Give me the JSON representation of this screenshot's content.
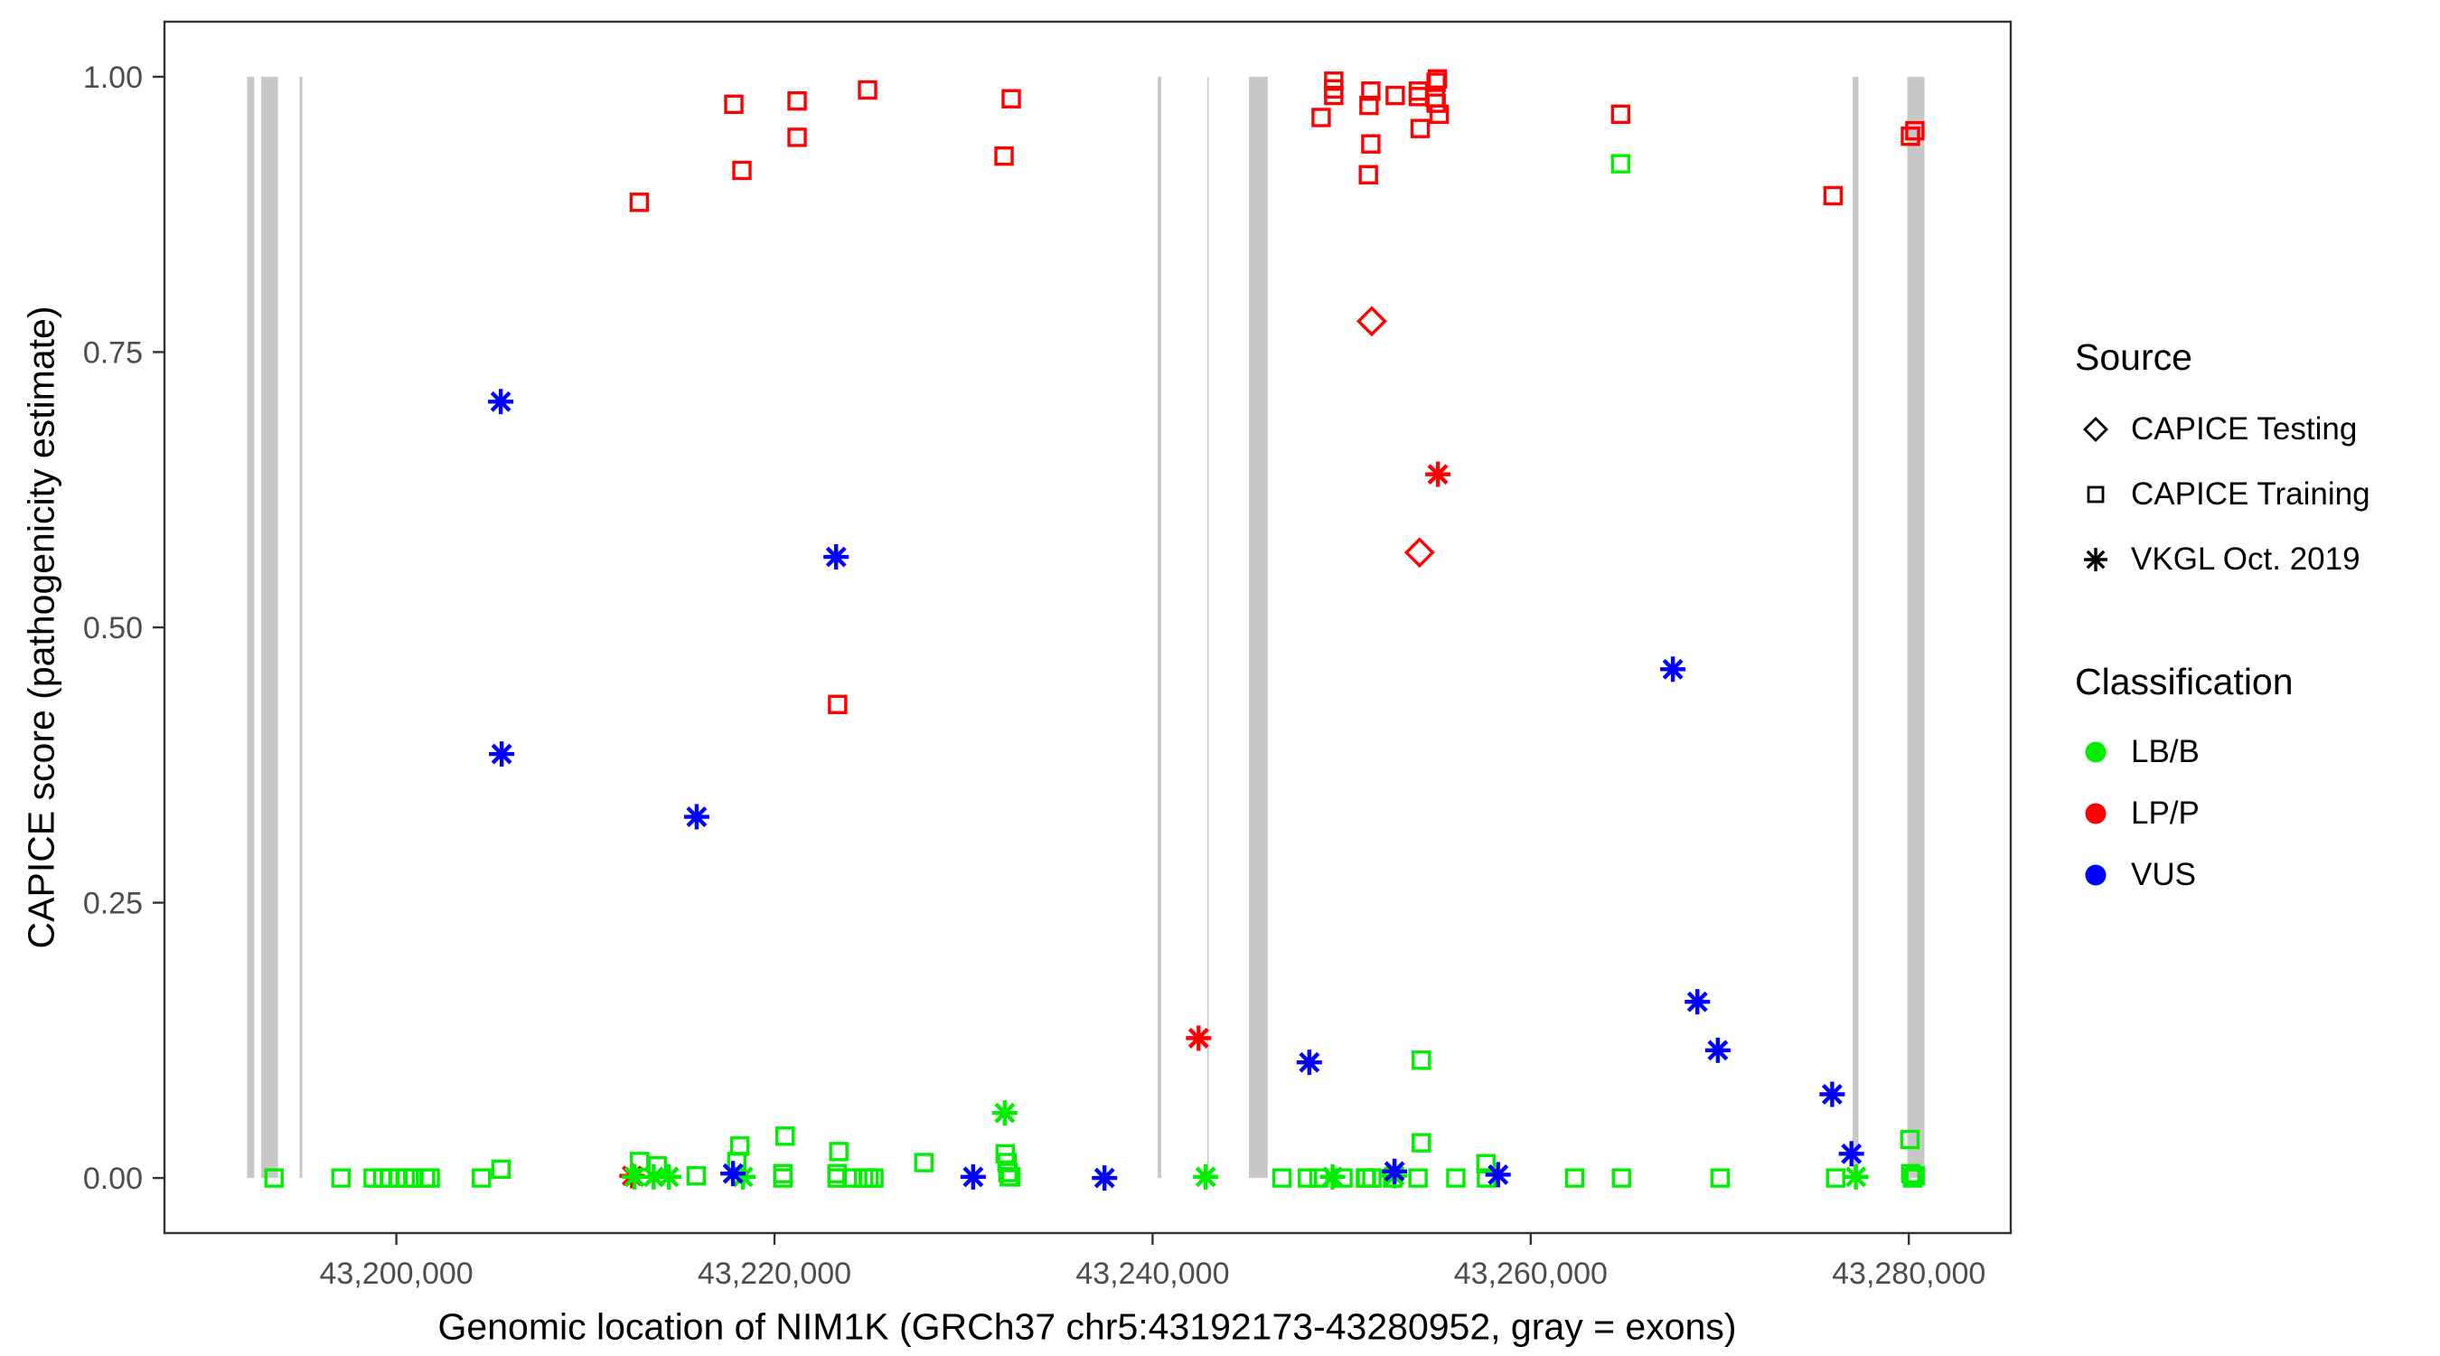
{
  "chart_data": {
    "type": "scatter",
    "title": "",
    "xlabel": "Genomic location of NIM1K (GRCh37 chr5:43192173-43280952, gray = exons)",
    "ylabel": "CAPICE score (pathogenicity estimate)",
    "xlim": [
      43187734,
      43285391
    ],
    "ylim": [
      -0.05,
      1.05
    ],
    "grid": false,
    "x_ticks": [
      {
        "value": 43200000,
        "label": "43,200,000"
      },
      {
        "value": 43220000,
        "label": "43,220,000"
      },
      {
        "value": 43240000,
        "label": "43,240,000"
      },
      {
        "value": 43260000,
        "label": "43,260,000"
      },
      {
        "value": 43280000,
        "label": "43,280,000"
      }
    ],
    "y_ticks": [
      {
        "value": 0.0,
        "label": "0.00"
      },
      {
        "value": 0.25,
        "label": "0.25"
      },
      {
        "value": 0.5,
        "label": "0.50"
      },
      {
        "value": 0.75,
        "label": "0.75"
      },
      {
        "value": 1.0,
        "label": "1.00"
      }
    ],
    "exon_color": "#C8C8C8",
    "exons": [
      [
        43192100,
        43192480
      ],
      [
        43192850,
        43193740
      ],
      [
        43194880,
        43195030
      ],
      [
        43240270,
        43240460
      ],
      [
        43242890,
        43242960
      ],
      [
        43245090,
        43246090
      ],
      [
        43277030,
        43277340
      ],
      [
        43279920,
        43280830
      ]
    ],
    "shape_by_source": {
      "CAPICE Testing": "diamond",
      "CAPICE Training": "square",
      "VKGL Oct. 2019": "asterisk"
    },
    "color_by_classification": {
      "LB/B": "#00EE00",
      "LP/P": "#FF0000",
      "VUS": "#0000FF"
    },
    "points": [
      {
        "x": 43212850,
        "y": 0.886,
        "shape": "square",
        "class": "LP/P"
      },
      {
        "x": 43217850,
        "y": 0.975,
        "shape": "square",
        "class": "LP/P"
      },
      {
        "x": 43218280,
        "y": 0.915,
        "shape": "square",
        "class": "LP/P"
      },
      {
        "x": 43221196,
        "y": 0.978,
        "shape": "square",
        "class": "LP/P"
      },
      {
        "x": 43221196,
        "y": 0.945,
        "shape": "square",
        "class": "LP/P"
      },
      {
        "x": 43224924,
        "y": 0.988,
        "shape": "square",
        "class": "LP/P"
      },
      {
        "x": 43232524,
        "y": 0.98,
        "shape": "square",
        "class": "LP/P"
      },
      {
        "x": 43232142,
        "y": 0.928,
        "shape": "square",
        "class": "LP/P"
      },
      {
        "x": 43248914,
        "y": 0.963,
        "shape": "square",
        "class": "LP/P"
      },
      {
        "x": 43249583,
        "y": 0.996,
        "shape": "square",
        "class": "LP/P"
      },
      {
        "x": 43249583,
        "y": 0.989,
        "shape": "square",
        "class": "LP/P"
      },
      {
        "x": 43249583,
        "y": 0.983,
        "shape": "square",
        "class": "LP/P"
      },
      {
        "x": 43251543,
        "y": 0.987,
        "shape": "square",
        "class": "LP/P"
      },
      {
        "x": 43251447,
        "y": 0.974,
        "shape": "square",
        "class": "LP/P"
      },
      {
        "x": 43251543,
        "y": 0.939,
        "shape": "square",
        "class": "LP/P"
      },
      {
        "x": 43251414,
        "y": 0.911,
        "shape": "square",
        "class": "LP/P"
      },
      {
        "x": 43252833,
        "y": 0.983,
        "shape": "square",
        "class": "LP/P"
      },
      {
        "x": 43254059,
        "y": 0.987,
        "shape": "square",
        "class": "LP/P"
      },
      {
        "x": 43254059,
        "y": 0.982,
        "shape": "square",
        "class": "LP/P"
      },
      {
        "x": 43254952,
        "y": 0.981,
        "shape": "square",
        "class": "LP/P"
      },
      {
        "x": 43255000,
        "y": 0.995,
        "shape": "square",
        "class": "LP/P"
      },
      {
        "x": 43255066,
        "y": 0.998,
        "shape": "square",
        "class": "LP/P"
      },
      {
        "x": 43255000,
        "y": 0.976,
        "shape": "square",
        "class": "LP/P"
      },
      {
        "x": 43255159,
        "y": 0.966,
        "shape": "square",
        "class": "LP/P"
      },
      {
        "x": 43254155,
        "y": 0.953,
        "shape": "square",
        "class": "LP/P"
      },
      {
        "x": 43264759,
        "y": 0.966,
        "shape": "square",
        "class": "LP/P"
      },
      {
        "x": 43275994,
        "y": 0.892,
        "shape": "square",
        "class": "LP/P"
      },
      {
        "x": 43280086,
        "y": 0.946,
        "shape": "square",
        "class": "LP/P"
      },
      {
        "x": 43280320,
        "y": 0.951,
        "shape": "square",
        "class": "LP/P"
      },
      {
        "x": 43223338,
        "y": 0.43,
        "shape": "square",
        "class": "LP/P"
      },
      {
        "x": 43251592,
        "y": 0.778,
        "shape": "diamond",
        "class": "LP/P"
      },
      {
        "x": 43254120,
        "y": 0.568,
        "shape": "diamond",
        "class": "LP/P"
      },
      {
        "x": 43212465,
        "y": 0.002,
        "shape": "asterisk",
        "class": "LP/P"
      },
      {
        "x": 43242434,
        "y": 0.127,
        "shape": "asterisk",
        "class": "LP/P"
      },
      {
        "x": 43255090,
        "y": 0.639,
        "shape": "asterisk",
        "class": "LP/P"
      },
      {
        "x": 43264759,
        "y": 0.921,
        "shape": "square",
        "class": "LB/B"
      },
      {
        "x": 43193530,
        "y": 0.0,
        "shape": "square",
        "class": "LB/B"
      },
      {
        "x": 43197070,
        "y": 0.0,
        "shape": "square",
        "class": "LB/B"
      },
      {
        "x": 43198770,
        "y": 0.0,
        "shape": "square",
        "class": "LB/B"
      },
      {
        "x": 43199280,
        "y": 0.0,
        "shape": "square",
        "class": "LB/B"
      },
      {
        "x": 43199670,
        "y": 0.0,
        "shape": "square",
        "class": "LB/B"
      },
      {
        "x": 43200080,
        "y": 0.0,
        "shape": "square",
        "class": "LB/B"
      },
      {
        "x": 43200460,
        "y": 0.0,
        "shape": "square",
        "class": "LB/B"
      },
      {
        "x": 43200870,
        "y": 0.0,
        "shape": "square",
        "class": "LB/B"
      },
      {
        "x": 43201540,
        "y": 0.0,
        "shape": "square",
        "class": "LB/B"
      },
      {
        "x": 43201790,
        "y": 0.0,
        "shape": "square",
        "class": "LB/B"
      },
      {
        "x": 43204500,
        "y": 0.0,
        "shape": "square",
        "class": "LB/B"
      },
      {
        "x": 43205530,
        "y": 0.008,
        "shape": "square",
        "class": "LB/B"
      },
      {
        "x": 43212866,
        "y": 0.015,
        "shape": "square",
        "class": "LB/B"
      },
      {
        "x": 43213804,
        "y": 0.011,
        "shape": "square",
        "class": "LB/B"
      },
      {
        "x": 43215857,
        "y": 0.002,
        "shape": "square",
        "class": "LB/B"
      },
      {
        "x": 43218007,
        "y": 0.015,
        "shape": "square",
        "class": "LB/B"
      },
      {
        "x": 43218167,
        "y": 0.029,
        "shape": "square",
        "class": "LB/B"
      },
      {
        "x": 43220440,
        "y": 0.004,
        "shape": "square",
        "class": "LB/B"
      },
      {
        "x": 43220440,
        "y": 0.0,
        "shape": "square",
        "class": "LB/B"
      },
      {
        "x": 43220560,
        "y": 0.038,
        "shape": "square",
        "class": "LB/B"
      },
      {
        "x": 43223310,
        "y": 0.004,
        "shape": "square",
        "class": "LB/B"
      },
      {
        "x": 43223310,
        "y": 0.0,
        "shape": "square",
        "class": "LB/B"
      },
      {
        "x": 43223400,
        "y": 0.024,
        "shape": "square",
        "class": "LB/B"
      },
      {
        "x": 43224100,
        "y": 0.0,
        "shape": "square",
        "class": "LB/B"
      },
      {
        "x": 43224720,
        "y": 0.0,
        "shape": "square",
        "class": "LB/B"
      },
      {
        "x": 43225000,
        "y": 0.0,
        "shape": "square",
        "class": "LB/B"
      },
      {
        "x": 43225260,
        "y": 0.0,
        "shape": "square",
        "class": "LB/B"
      },
      {
        "x": 43227900,
        "y": 0.014,
        "shape": "square",
        "class": "LB/B"
      },
      {
        "x": 43232200,
        "y": 0.022,
        "shape": "square",
        "class": "LB/B"
      },
      {
        "x": 43232300,
        "y": 0.014,
        "shape": "square",
        "class": "LB/B"
      },
      {
        "x": 43232350,
        "y": 0.005,
        "shape": "square",
        "class": "LB/B"
      },
      {
        "x": 43232420,
        "y": 0.001,
        "shape": "square",
        "class": "LB/B"
      },
      {
        "x": 43232500,
        "y": 0.001,
        "shape": "square",
        "class": "LB/B"
      },
      {
        "x": 43246840,
        "y": 0.0,
        "shape": "square",
        "class": "LB/B"
      },
      {
        "x": 43248190,
        "y": 0.0,
        "shape": "square",
        "class": "LB/B"
      },
      {
        "x": 43248800,
        "y": 0.0,
        "shape": "square",
        "class": "LB/B"
      },
      {
        "x": 43250070,
        "y": 0.0,
        "shape": "square",
        "class": "LB/B"
      },
      {
        "x": 43251260,
        "y": 0.0,
        "shape": "square",
        "class": "LB/B"
      },
      {
        "x": 43251310,
        "y": 0.0,
        "shape": "square",
        "class": "LB/B"
      },
      {
        "x": 43251600,
        "y": 0.0,
        "shape": "square",
        "class": "LB/B"
      },
      {
        "x": 43252700,
        "y": 0.0,
        "shape": "square",
        "class": "LB/B"
      },
      {
        "x": 43254040,
        "y": 0.0,
        "shape": "square",
        "class": "LB/B"
      },
      {
        "x": 43254213,
        "y": 0.107,
        "shape": "square",
        "class": "LB/B"
      },
      {
        "x": 43254213,
        "y": 0.032,
        "shape": "square",
        "class": "LB/B"
      },
      {
        "x": 43256040,
        "y": 0.0,
        "shape": "square",
        "class": "LB/B"
      },
      {
        "x": 43257630,
        "y": 0.013,
        "shape": "square",
        "class": "LB/B"
      },
      {
        "x": 43257660,
        "y": 0.0,
        "shape": "square",
        "class": "LB/B"
      },
      {
        "x": 43262320,
        "y": 0.0,
        "shape": "square",
        "class": "LB/B"
      },
      {
        "x": 43264800,
        "y": 0.0,
        "shape": "square",
        "class": "LB/B"
      },
      {
        "x": 43270020,
        "y": 0.0,
        "shape": "square",
        "class": "LB/B"
      },
      {
        "x": 43276130,
        "y": 0.0,
        "shape": "square",
        "class": "LB/B"
      },
      {
        "x": 43280060,
        "y": 0.035,
        "shape": "square",
        "class": "LB/B"
      },
      {
        "x": 43280100,
        "y": 0.004,
        "shape": "square",
        "class": "LB/B"
      },
      {
        "x": 43280200,
        "y": 0.0,
        "shape": "square",
        "class": "LB/B"
      },
      {
        "x": 43280330,
        "y": 0.002,
        "shape": "square",
        "class": "LB/B"
      },
      {
        "x": 43212600,
        "y": 0.001,
        "shape": "asterisk",
        "class": "LB/B"
      },
      {
        "x": 43213613,
        "y": 0.001,
        "shape": "asterisk",
        "class": "LB/B"
      },
      {
        "x": 43214410,
        "y": 0.001,
        "shape": "asterisk",
        "class": "LB/B"
      },
      {
        "x": 43218330,
        "y": 0.001,
        "shape": "asterisk",
        "class": "LB/B"
      },
      {
        "x": 43232180,
        "y": 0.059,
        "shape": "asterisk",
        "class": "LB/B"
      },
      {
        "x": 43242810,
        "y": 0.001,
        "shape": "asterisk",
        "class": "LB/B"
      },
      {
        "x": 43249520,
        "y": 0.001,
        "shape": "asterisk",
        "class": "LB/B"
      },
      {
        "x": 43252790,
        "y": 0.002,
        "shape": "asterisk",
        "class": "LB/B"
      },
      {
        "x": 43277200,
        "y": 0.001,
        "shape": "asterisk",
        "class": "LB/B"
      },
      {
        "x": 43205521,
        "y": 0.705,
        "shape": "asterisk",
        "class": "VUS"
      },
      {
        "x": 43205569,
        "y": 0.385,
        "shape": "asterisk",
        "class": "VUS"
      },
      {
        "x": 43215884,
        "y": 0.328,
        "shape": "asterisk",
        "class": "VUS"
      },
      {
        "x": 43217805,
        "y": 0.004,
        "shape": "asterisk",
        "class": "VUS"
      },
      {
        "x": 43223259,
        "y": 0.564,
        "shape": "asterisk",
        "class": "VUS"
      },
      {
        "x": 43230508,
        "y": 0.001,
        "shape": "asterisk",
        "class": "VUS"
      },
      {
        "x": 43237458,
        "y": 0.0,
        "shape": "asterisk",
        "class": "VUS"
      },
      {
        "x": 43248290,
        "y": 0.105,
        "shape": "asterisk",
        "class": "VUS"
      },
      {
        "x": 43252796,
        "y": 0.006,
        "shape": "asterisk",
        "class": "VUS"
      },
      {
        "x": 43258274,
        "y": 0.003,
        "shape": "asterisk",
        "class": "VUS"
      },
      {
        "x": 43267519,
        "y": 0.462,
        "shape": "asterisk",
        "class": "VUS"
      },
      {
        "x": 43268817,
        "y": 0.16,
        "shape": "asterisk",
        "class": "VUS"
      },
      {
        "x": 43269898,
        "y": 0.116,
        "shape": "asterisk",
        "class": "VUS"
      },
      {
        "x": 43275945,
        "y": 0.076,
        "shape": "asterisk",
        "class": "VUS"
      },
      {
        "x": 43276965,
        "y": 0.022,
        "shape": "asterisk",
        "class": "VUS"
      }
    ]
  },
  "legend": {
    "source_title": "Source",
    "source_items": [
      {
        "label": "CAPICE Testing",
        "shape": "diamond"
      },
      {
        "label": "CAPICE Training",
        "shape": "square"
      },
      {
        "label": "VKGL Oct. 2019",
        "shape": "asterisk"
      }
    ],
    "classification_title": "Classification",
    "classification_items": [
      {
        "label": "LB/B",
        "color": "#00EE00"
      },
      {
        "label": "LP/P",
        "color": "#FF0000"
      },
      {
        "label": "VUS",
        "color": "#0000FF"
      }
    ]
  },
  "style": {
    "panel_border_color": "#333333",
    "tick_color": "#333333",
    "tick_label_color": "#4D4D4D"
  }
}
